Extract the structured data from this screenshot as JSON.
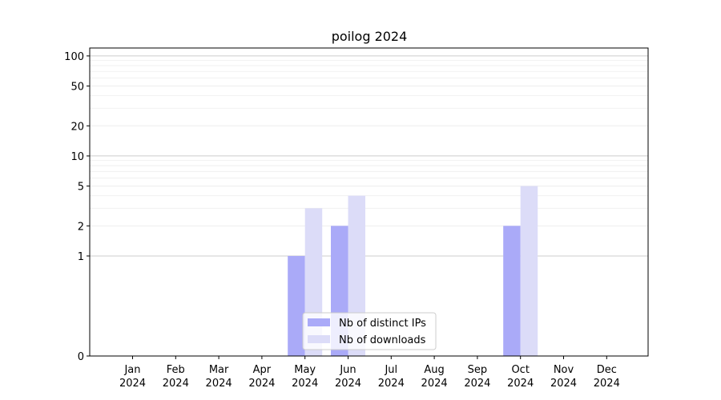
{
  "chart_data": {
    "type": "bar",
    "title": "poilog 2024",
    "xlabel": "",
    "ylabel": "",
    "yscale": "symlog",
    "ylim": [
      0,
      120
    ],
    "yticks": [
      0,
      1,
      2,
      5,
      10,
      20,
      50,
      100
    ],
    "grid": true,
    "legend_position": "lower-center",
    "categories": [
      [
        "Jan",
        "2024"
      ],
      [
        "Feb",
        "2024"
      ],
      [
        "Mar",
        "2024"
      ],
      [
        "Apr",
        "2024"
      ],
      [
        "May",
        "2024"
      ],
      [
        "Jun",
        "2024"
      ],
      [
        "Jul",
        "2024"
      ],
      [
        "Aug",
        "2024"
      ],
      [
        "Sep",
        "2024"
      ],
      [
        "Oct",
        "2024"
      ],
      [
        "Nov",
        "2024"
      ],
      [
        "Dec",
        "2024"
      ]
    ],
    "series": [
      {
        "name": "Nb of distinct IPs",
        "color": "#aaaaf8",
        "values": [
          0,
          0,
          0,
          0,
          1,
          2,
          0,
          0,
          0,
          2,
          0,
          0
        ]
      },
      {
        "name": "Nb of downloads",
        "color": "#dcdcf8",
        "values": [
          0,
          0,
          0,
          0,
          3,
          4,
          0,
          0,
          0,
          5,
          0,
          0
        ]
      }
    ]
  }
}
